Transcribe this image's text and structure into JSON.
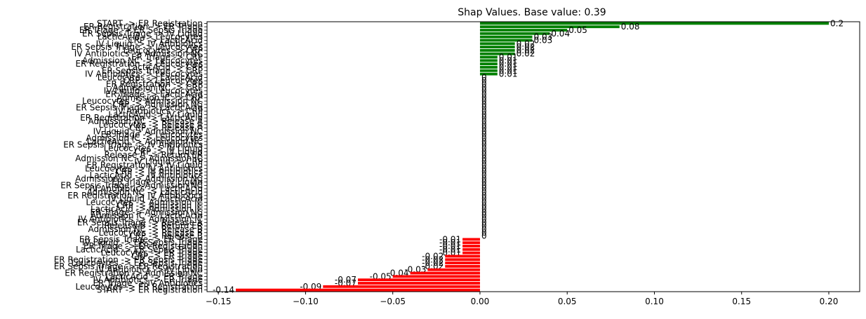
{
  "chart_data": {
    "type": "barh",
    "title": "Shap Values. Base value: 0.39",
    "categories": [
      "START -> ER Registration",
      "ER Registration -> ER Triage",
      "ER Triage -> ER Sepsis Triage",
      "ER Sepsis Triage -> IV Liquid",
      "LacticAcid -> Leucocytes",
      "CRP -> LacticAcid",
      "IV Liquid -> IV Antibiotics",
      "ER Sepsis Triage -> Leucocytes",
      "Leucocytes -> CRP",
      "IV Antibiotics -> Admission NC",
      "ER Triage -> CRP",
      "Admission NC -> Leucocytes",
      "ER Registration -> Leucocytes",
      "LacticAcid -> CRP",
      "ER Sepsis Triage -> CRP",
      "IV Antibiotics -> Leucocytes",
      "Leucocytes -> LacticAcid",
      "CRP -> Leucocytes",
      "ER Registration -> CRP",
      "Admission NC -> CRP",
      "IV Liquid -> Leucocytes",
      "ER Triage -> LacticAcid",
      "Admission IC -> CRP",
      "Leucocytes -> Admission NC",
      "CRP -> Admission NC",
      "ER Sepsis Triage -> LacticAcid",
      "IV Antibiotics -> CRP",
      "LacticAcid -> IV Liquid",
      "ER Registration -> LacticAcid",
      "Admission NC -> Release A",
      "Leucocytes -> Release A",
      "CRP -> Release A",
      "IV Liquid -> Admission NC",
      "ER Triage -> Leucocytes",
      "Admission IC -> Leucocytes",
      "LacticAcid -> Admission NC",
      "ER Sepsis Triage -> IV Antibiotics",
      "Leucocytes -> IV Liquid",
      "CRP -> IV Liquid",
      "Release A -> Return ER",
      "Admission NC -> Admission IC",
      "IV Liquid -> CRP",
      "ER Registration -> IV Liquid",
      "Leucocytes -> IV Antibiotics",
      "CRP -> IV Antibiotics",
      "LacticAcid -> IV Antibiotics",
      "Admission IC -> Admission NC",
      "ER Triage -> IV Liquid",
      "ER Sepsis Triage -> Admission NC",
      "IV Antibiotics -> LacticAcid",
      "Admission NC -> LacticAcid",
      "ER Registration -> IV Antibiotics",
      "IV Liquid -> LacticAcid",
      "Leucocytes -> Admission IC",
      "CRP -> Admission IC",
      "LacticAcid -> Admission IC",
      "ER Triage -> Admission NC",
      "Admission IC -> LacticAcid",
      "IV Antibiotics -> Admission IC",
      "ER Sepsis Triage -> Release A",
      "Release B -> Return ER",
      "Admission NC -> Release B",
      "Leucocytes -> Release B",
      "CRP -> Release B",
      "ER Sepsis Triage -> ER Triage",
      "IV Liquid -> ER Sepsis Triage",
      "ER Triage -> ER Registration",
      "LacticAcid -> ER Sepsis Triage",
      "Leucocytes -> ER Triage",
      "CRP -> ER Triage",
      "ER Registration -> ER Sepsis Triage",
      "Leucocytes -> ER Sepsis Triage",
      "ER Sepsis Triage -> ER Registration",
      "IV Antibiotics -> IV Liquid",
      "ER Registration -> Admission NC",
      "LacticAcid -> ER Triage",
      "IV Antibiotics -> ER Triage",
      "ER Triage -> IV Antibiotics",
      "Leucocytes -> ER Registration",
      "START -> ER Registration"
    ],
    "values": [
      0.2,
      0.08,
      0.05,
      0.04,
      0.03,
      0.03,
      0.02,
      0.02,
      0.02,
      0.02,
      0.01,
      0.01,
      0.01,
      0.01,
      0.01,
      0.01,
      0,
      0,
      0,
      0,
      0,
      0,
      0,
      0,
      0,
      0,
      0,
      0,
      0,
      0,
      0,
      0,
      0,
      0,
      0,
      0,
      0,
      0,
      0,
      0,
      0,
      0,
      0,
      0,
      0,
      0,
      0,
      0,
      0,
      0,
      0,
      0,
      0,
      0,
      0,
      0,
      0,
      0,
      0,
      0,
      0,
      0,
      0,
      0,
      -0.01,
      -0.01,
      -0.01,
      -0.01,
      -0.01,
      -0.02,
      -0.02,
      -0.02,
      -0.02,
      -0.03,
      -0.04,
      -0.05,
      -0.07,
      -0.07,
      -0.09,
      -0.14
    ],
    "color_positive": "#008000",
    "color_negative": "#ff0000",
    "xlim": [
      -0.1565,
      0.2177
    ],
    "xticks": [
      {
        "value": -0.15,
        "label": "−0.15"
      },
      {
        "value": -0.1,
        "label": "−0.10"
      },
      {
        "value": -0.05,
        "label": "−0.05"
      },
      {
        "value": 0,
        "label": "0.00"
      },
      {
        "value": 0.05,
        "label": "0.05"
      },
      {
        "value": 0.1,
        "label": "0.10"
      },
      {
        "value": 0.15,
        "label": "0.15"
      },
      {
        "value": 0.2,
        "label": "0.20"
      }
    ]
  }
}
